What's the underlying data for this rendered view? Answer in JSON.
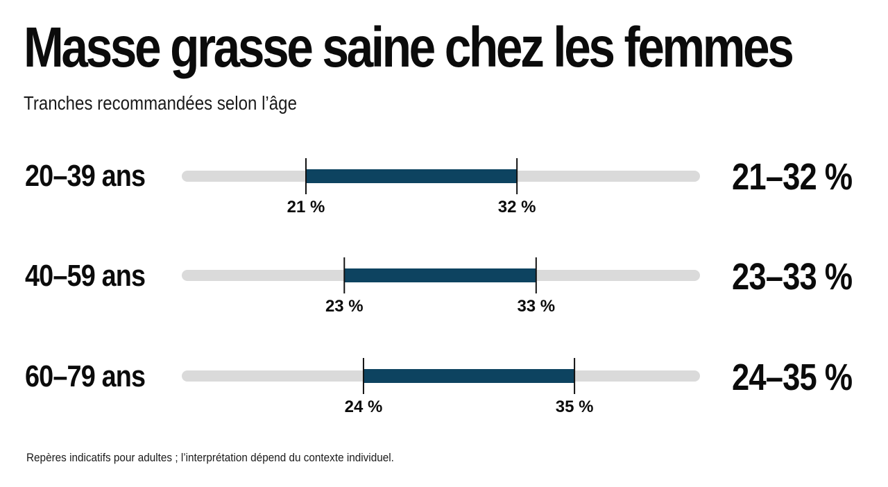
{
  "title": "Masse grasse saine chez les femmes",
  "subtitle": "Tranches recommandées selon l’âge",
  "footnote": "Repères indicatifs pour adultes ; l’interprétation dépend du contexte individuel.",
  "colors": {
    "track": "#dadada",
    "range": "#0d4360",
    "tick": "#111111",
    "text": "#0b0b0b"
  },
  "chart_data": {
    "type": "range_bar",
    "title": "Masse grasse saine chez les femmes",
    "subtitle": "Tranches recommandées selon l’âge",
    "xlim": [
      15,
      40
    ],
    "unit": "%",
    "grid": false,
    "series": [
      {
        "label": "20–39 ans",
        "min": 21,
        "max": 32,
        "min_label": "21 %",
        "max_label": "32 %",
        "range_label": "21–32 %"
      },
      {
        "label": "40–59 ans",
        "min": 23,
        "max": 33,
        "min_label": "23 %",
        "max_label": "33 %",
        "range_label": "23–33 %"
      },
      {
        "label": "60–79 ans",
        "min": 24,
        "max": 35,
        "min_label": "24 %",
        "max_label": "35 %",
        "range_label": "24–35 %"
      }
    ]
  }
}
